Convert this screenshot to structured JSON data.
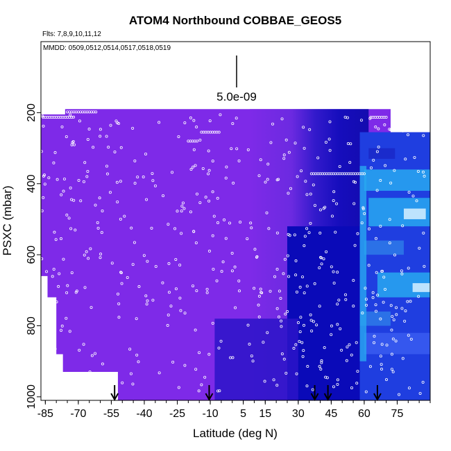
{
  "chart_data": {
    "type": "heatmap",
    "title": "ATOM4 Northbound COBBAE_GEOS5",
    "flights_note": "Flts: 7,8,9,10,11,12",
    "dates_note": "MMDD: 0509,0512,0514,0517,0518,0519",
    "scale_label": "5.0e-09",
    "xlabel": "Latitude (deg N)",
    "ylabel": "PSXC (mbar)",
    "xlim": [
      -87,
      90
    ],
    "ylim": [
      1010,
      0
    ],
    "x_ticks": [
      -85,
      -70,
      -55,
      -40,
      -25,
      -10,
      5,
      15,
      30,
      45,
      60,
      75
    ],
    "x_tick_labels": [
      "-85",
      "-70",
      "-55",
      "-40",
      "-25",
      "-10",
      "5",
      "15",
      "30",
      "45",
      "60",
      "75"
    ],
    "y_ticks": [
      200,
      400,
      600,
      800,
      1000
    ],
    "y_tick_labels": [
      "200",
      "400",
      "600",
      "800",
      "1000"
    ],
    "arrow_latitudes": [
      -53.5,
      -10.5,
      37.5,
      43.5,
      66
    ],
    "colors": {
      "background_fill": "#7e2ae8",
      "dark_blue": "#0a0ab8",
      "medium_blue": "#1f3ee0",
      "light_blue": "#28a8f0",
      "pale_blue": "#d8f0ff",
      "dot_color": "#ffffff"
    }
  }
}
